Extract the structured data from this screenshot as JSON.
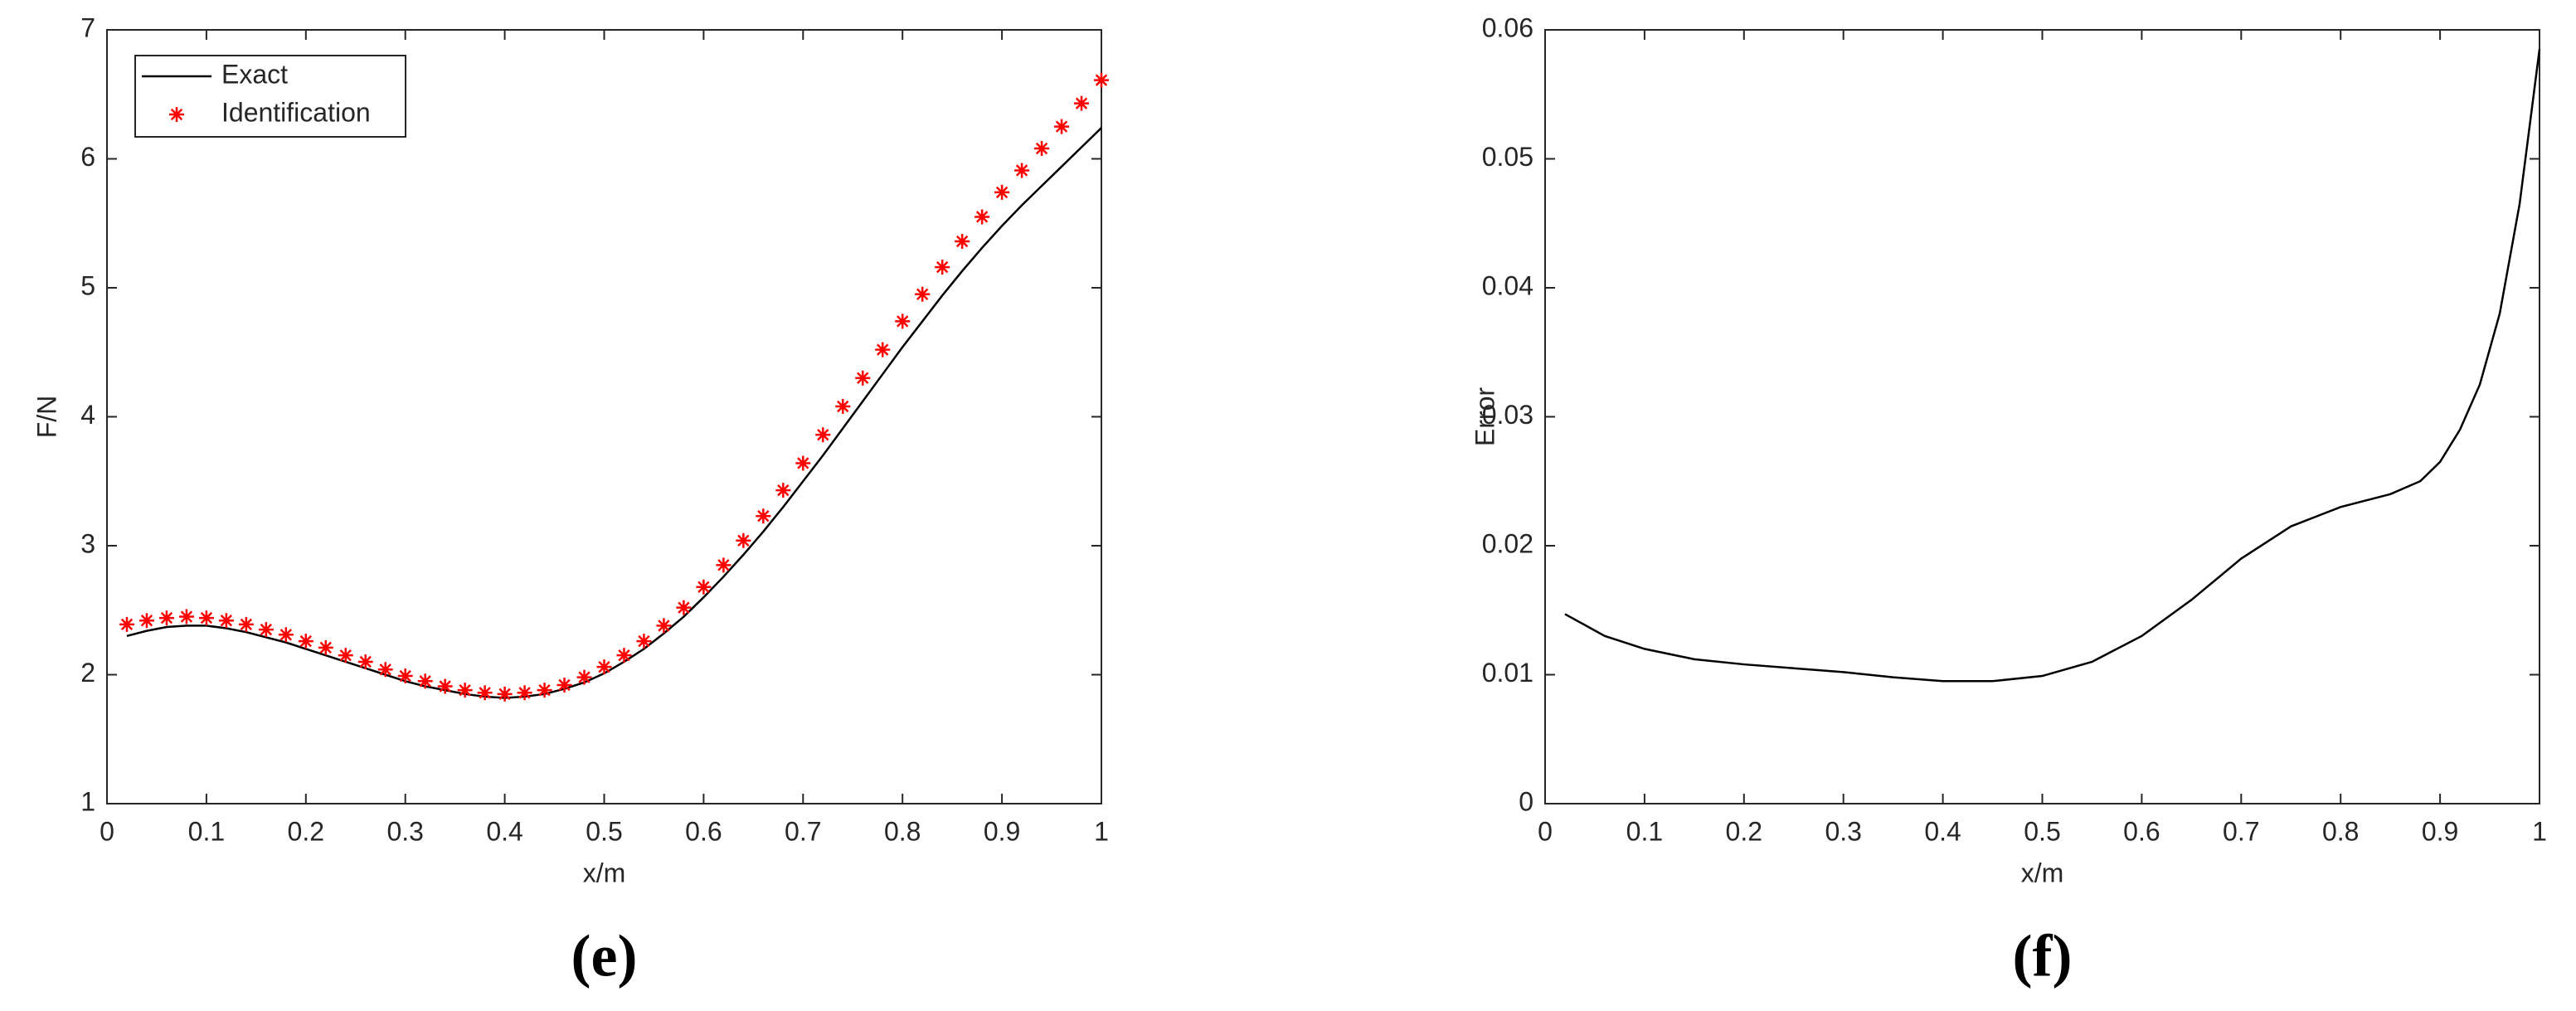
{
  "chart_data": [
    {
      "type": "line",
      "caption": "(e)",
      "x_label": "x/m",
      "y_label": "F/N",
      "x": [
        0.02,
        0.04,
        0.06,
        0.08,
        0.1,
        0.12,
        0.14,
        0.16,
        0.18,
        0.2,
        0.22,
        0.24,
        0.26,
        0.28,
        0.3,
        0.32,
        0.34,
        0.36,
        0.38,
        0.4,
        0.42,
        0.44,
        0.46,
        0.48,
        0.5,
        0.52,
        0.54,
        0.56,
        0.58,
        0.6,
        0.62,
        0.64,
        0.66,
        0.68,
        0.7,
        0.72,
        0.74,
        0.76,
        0.78,
        0.8,
        0.82,
        0.84,
        0.86,
        0.88,
        0.9,
        0.92,
        0.94,
        0.96,
        0.98,
        1.0
      ],
      "series": [
        {
          "name": "Exact",
          "color": "#000000",
          "style": "line",
          "values": [
            2.3,
            2.34,
            2.37,
            2.38,
            2.38,
            2.36,
            2.33,
            2.29,
            2.25,
            2.2,
            2.15,
            2.1,
            2.05,
            2.0,
            1.95,
            1.91,
            1.88,
            1.85,
            1.83,
            1.82,
            1.83,
            1.85,
            1.89,
            1.94,
            2.01,
            2.1,
            2.2,
            2.32,
            2.45,
            2.6,
            2.76,
            2.93,
            3.11,
            3.3,
            3.5,
            3.7,
            3.91,
            4.12,
            4.33,
            4.54,
            4.74,
            4.94,
            5.13,
            5.31,
            5.48,
            5.64,
            5.79,
            5.94,
            6.09,
            6.24
          ]
        },
        {
          "name": "Identification",
          "color": "#ff0000",
          "style": "marker",
          "values": [
            2.39,
            2.42,
            2.44,
            2.45,
            2.44,
            2.42,
            2.39,
            2.35,
            2.31,
            2.26,
            2.21,
            2.15,
            2.1,
            2.04,
            1.99,
            1.95,
            1.91,
            1.88,
            1.86,
            1.85,
            1.86,
            1.88,
            1.92,
            1.98,
            2.06,
            2.15,
            2.26,
            2.38,
            2.52,
            2.68,
            2.85,
            3.04,
            3.23,
            3.43,
            3.64,
            3.86,
            4.08,
            4.3,
            4.52,
            4.74,
            4.95,
            5.16,
            5.36,
            5.55,
            5.74,
            5.91,
            6.08,
            6.25,
            6.43,
            6.61
          ]
        }
      ],
      "xlim": [
        0,
        1
      ],
      "xticks": [
        0,
        0.1,
        0.2,
        0.3,
        0.4,
        0.5,
        0.6,
        0.7,
        0.8,
        0.9,
        1
      ],
      "ylim": [
        1,
        7
      ],
      "yticks": [
        1,
        2,
        3,
        4,
        5,
        6,
        7
      ],
      "legend": "upper left"
    },
    {
      "type": "line",
      "caption": "(f)",
      "x_label": "x/m",
      "y_label": "Error",
      "x": [
        0.02,
        0.06,
        0.1,
        0.15,
        0.2,
        0.25,
        0.3,
        0.35,
        0.4,
        0.45,
        0.5,
        0.55,
        0.6,
        0.65,
        0.7,
        0.75,
        0.8,
        0.85,
        0.88,
        0.9,
        0.92,
        0.94,
        0.96,
        0.98,
        1.0
      ],
      "series": [
        {
          "color": "#000000",
          "style": "line",
          "values": [
            0.0147,
            0.013,
            0.012,
            0.0112,
            0.0108,
            0.0105,
            0.0102,
            0.0098,
            0.0095,
            0.0095,
            0.0099,
            0.011,
            0.013,
            0.0158,
            0.019,
            0.0215,
            0.023,
            0.024,
            0.025,
            0.0265,
            0.029,
            0.0325,
            0.038,
            0.0465,
            0.0585
          ]
        }
      ],
      "xlim": [
        0,
        1
      ],
      "xticks": [
        0,
        0.1,
        0.2,
        0.3,
        0.4,
        0.5,
        0.6,
        0.7,
        0.8,
        0.9,
        1
      ],
      "ylim": [
        0,
        0.06
      ],
      "yticks": [
        0,
        0.01,
        0.02,
        0.03,
        0.04,
        0.05,
        0.06
      ]
    }
  ]
}
